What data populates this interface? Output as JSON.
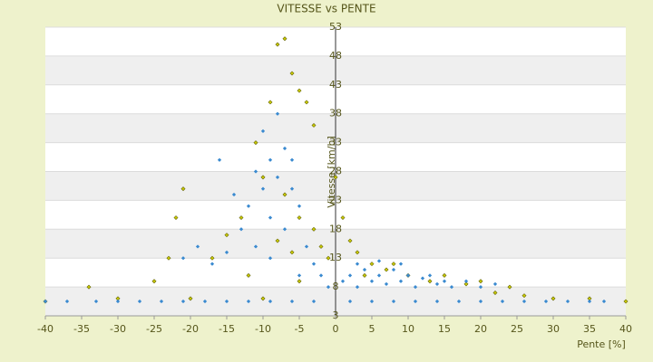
{
  "chart_data": {
    "type": "scatter",
    "title": "VITESSE vs PENTE",
    "x_label": "Pente [%]",
    "y_label": "Vitesse [km/h]",
    "xlim": [
      -40,
      40
    ],
    "ylim": [
      3,
      53
    ],
    "xticks": [
      -40,
      -35,
      -30,
      -25,
      -20,
      -15,
      -10,
      -5,
      0,
      5,
      10,
      15,
      20,
      25,
      30,
      35,
      40
    ],
    "yticks": [
      3,
      8,
      13,
      18,
      23,
      28,
      33,
      38,
      43,
      48,
      53
    ],
    "grid": true,
    "series": [
      {
        "color": "#c8c800",
        "x": [
          -7,
          -8,
          -6,
          -5,
          -4,
          -3,
          -9,
          -11,
          -10,
          -7,
          -5,
          -3,
          -2,
          -1,
          -21,
          -22,
          -23,
          -25,
          -34,
          -13,
          -15,
          -17,
          0,
          1,
          2,
          3,
          5,
          7,
          10,
          13,
          18,
          22,
          26,
          30,
          35,
          -30,
          -20,
          -10,
          -5,
          4,
          8,
          15,
          20,
          24,
          -40,
          40,
          -12,
          -6,
          -8
        ],
        "values": [
          51,
          50,
          45,
          42,
          40,
          36,
          40,
          33,
          27,
          24,
          20,
          18,
          15,
          13,
          25,
          20,
          13,
          9,
          8,
          20,
          17,
          13,
          27,
          20,
          16,
          14,
          12,
          11,
          10,
          9,
          8.5,
          7,
          6.5,
          6,
          6,
          6,
          6,
          6,
          9,
          10,
          12,
          10,
          9,
          8,
          5.5,
          5.5,
          10,
          14,
          16
        ]
      },
      {
        "color": "#3a8ad0",
        "x": [
          -40,
          -37,
          -33,
          -30,
          -27,
          -24,
          -21,
          -18,
          -15,
          -12,
          -9,
          -6,
          -3,
          2,
          5,
          8,
          11,
          14,
          17,
          20,
          23,
          26,
          29,
          32,
          35,
          37,
          1,
          2,
          3,
          4,
          5,
          6,
          7,
          8,
          9,
          10,
          11,
          12,
          13,
          14,
          15,
          16,
          18,
          20,
          22,
          3,
          6,
          9,
          -10,
          -9,
          -8,
          -7,
          -6,
          -11,
          -12,
          -9,
          -7,
          -5,
          -4,
          -3,
          -8,
          -10,
          -6,
          -13,
          -15,
          -17,
          -19,
          -21,
          -16,
          -14,
          -2,
          -1,
          -5,
          -9,
          -11
        ],
        "values": [
          5.5,
          5.5,
          5.5,
          5.5,
          5.5,
          5.5,
          5.5,
          5.5,
          5.5,
          5.5,
          5.5,
          5.5,
          5.5,
          5.5,
          5.5,
          5.5,
          5.5,
          5.5,
          5.5,
          5.5,
          5.5,
          5.5,
          5.5,
          5.5,
          5.5,
          5.5,
          9,
          10,
          8,
          11,
          9,
          10,
          8.5,
          11,
          9,
          10,
          8,
          9.5,
          10,
          8.5,
          9,
          8,
          9,
          8,
          8.5,
          12,
          12.5,
          12,
          35,
          30,
          27,
          32,
          25,
          28,
          22,
          20,
          18,
          22,
          15,
          12,
          38,
          25,
          30,
          18,
          14,
          12,
          15,
          13,
          30,
          24,
          10,
          8,
          10,
          13,
          15
        ]
      }
    ]
  }
}
